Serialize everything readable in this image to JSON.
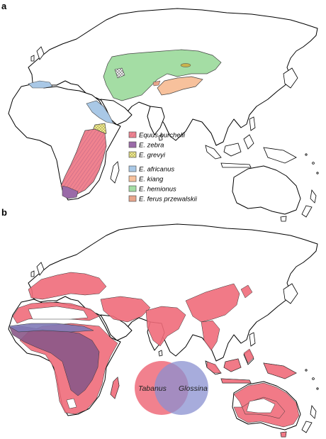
{
  "panels": [
    {
      "letter": "a",
      "legend": [
        {
          "label": "Equus burchelli",
          "color": "#f0838f",
          "pattern": "diag-stripes"
        },
        {
          "label": "E. zebra",
          "color": "#9a6aa8",
          "pattern": "none"
        },
        {
          "label": "E. grevyi",
          "color": "#f3ef9a",
          "pattern": "crosshatch"
        },
        {
          "label": "E. africanus",
          "color": "#a9c8e6",
          "pattern": "none"
        },
        {
          "label": "E. kiang",
          "color": "#f7c19c",
          "pattern": "none"
        },
        {
          "label": "E. hemionus",
          "color": "#a4dda4",
          "pattern": "none"
        },
        {
          "label": "E. ferus przewalskii",
          "color": "#e8a58b",
          "pattern": "none"
        }
      ]
    },
    {
      "letter": "b",
      "venn": [
        {
          "label": "Tabanus",
          "color": "#ef6b7a"
        },
        {
          "label": "Glossina",
          "color": "#8a90d0"
        }
      ]
    }
  ],
  "colors": {
    "overlap": "#8a5888",
    "land": "#ffffff",
    "coast": "#000000"
  }
}
